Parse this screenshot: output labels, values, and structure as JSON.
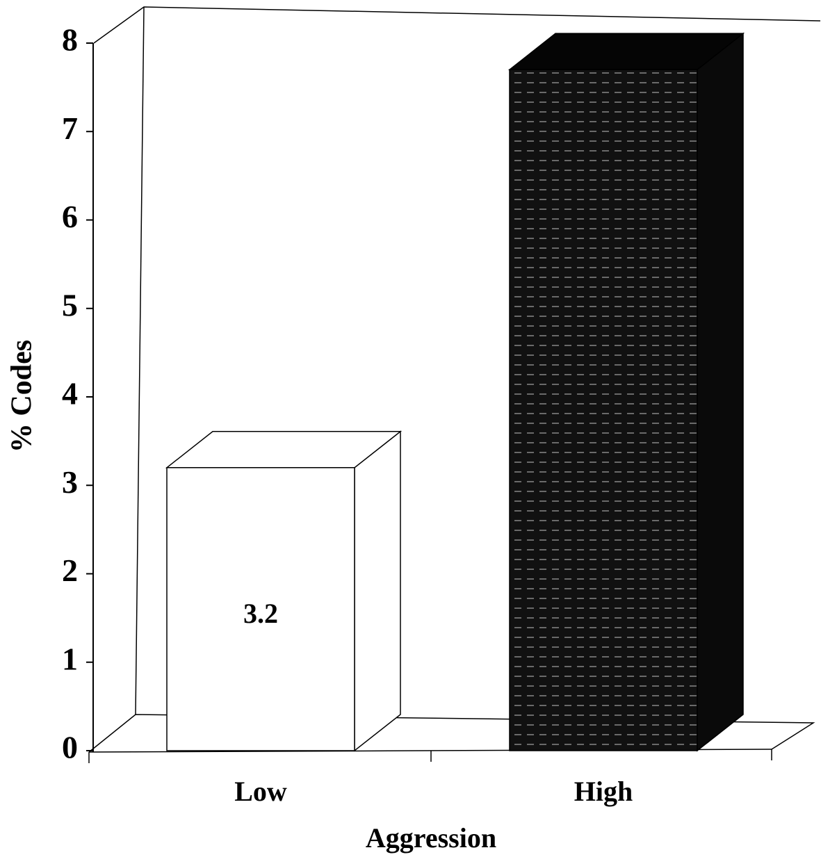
{
  "chart_data": {
    "type": "bar3d",
    "categories": [
      "Low",
      "High"
    ],
    "values": [
      3.2,
      7.7
    ],
    "value_labels": [
      "3.2",
      null
    ],
    "colors": [
      "#ffffff",
      "#111111"
    ],
    "xlabel": "Aggression",
    "ylabel": "% Codes",
    "ylim": [
      0,
      8
    ],
    "yticks": [
      0,
      1,
      2,
      3,
      4,
      5,
      6,
      7,
      8
    ]
  }
}
